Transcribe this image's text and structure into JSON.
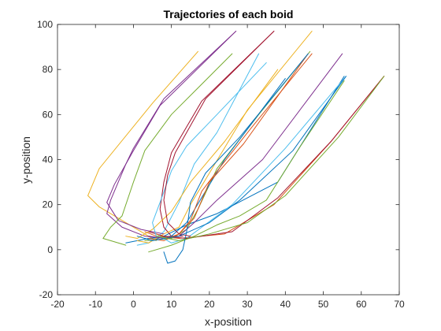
{
  "chart_data": {
    "type": "line",
    "title": "Trajectories of each boid",
    "xlabel": "x-position",
    "ylabel": "y-position",
    "xlim": [
      -20,
      70
    ],
    "ylim": [
      -20,
      100
    ],
    "xticks": [
      -20,
      -10,
      0,
      10,
      20,
      30,
      40,
      50,
      60,
      70
    ],
    "yticks": [
      -20,
      0,
      20,
      40,
      60,
      80,
      100
    ],
    "grid": false,
    "series": [
      {
        "color": "#0072BD",
        "points": [
          [
            55.5,
            77
          ],
          [
            38,
            30
          ],
          [
            22,
            16
          ],
          [
            14,
            11
          ],
          [
            8,
            6
          ],
          [
            5,
            4
          ],
          [
            3,
            5
          ]
        ]
      },
      {
        "color": "#D95319",
        "points": [
          [
            66,
            77
          ],
          [
            52,
            48
          ],
          [
            37,
            20
          ],
          [
            24,
            7
          ],
          [
            12,
            5
          ],
          [
            6,
            6
          ],
          [
            3,
            8
          ]
        ]
      },
      {
        "color": "#EDB120",
        "points": [
          [
            17,
            88
          ],
          [
            5,
            65
          ],
          [
            -9,
            36
          ],
          [
            -12,
            24
          ],
          [
            -9,
            19
          ],
          [
            -4,
            14
          ],
          [
            2,
            8
          ],
          [
            6,
            4
          ]
        ]
      },
      {
        "color": "#7E2F8E",
        "points": [
          [
            27,
            97
          ],
          [
            8,
            67
          ],
          [
            0,
            45
          ],
          [
            -2,
            38
          ],
          [
            -4,
            30
          ],
          [
            -6,
            22
          ],
          [
            -7,
            16
          ],
          [
            -3,
            10
          ],
          [
            3,
            6
          ],
          [
            8,
            5
          ]
        ]
      },
      {
        "color": "#77AC30",
        "points": [
          [
            46.5,
            88
          ],
          [
            33,
            60
          ],
          [
            22,
            36
          ],
          [
            17,
            18
          ],
          [
            14,
            9
          ],
          [
            10,
            5
          ],
          [
            3,
            4
          ]
        ]
      },
      {
        "color": "#4DBEEE",
        "points": [
          [
            33,
            87
          ],
          [
            22,
            52
          ],
          [
            16,
            38
          ],
          [
            12,
            21
          ],
          [
            8,
            8
          ],
          [
            4,
            3
          ],
          [
            1,
            2
          ]
        ]
      },
      {
        "color": "#A2142F",
        "points": [
          [
            37,
            97
          ],
          [
            18,
            66
          ],
          [
            10,
            43
          ],
          [
            8,
            30
          ],
          [
            7,
            18
          ],
          [
            8,
            10
          ],
          [
            10,
            6
          ],
          [
            13,
            6
          ]
        ]
      },
      {
        "color": "#0072BD",
        "points": [
          [
            40,
            76
          ],
          [
            24,
            40
          ],
          [
            14,
            12
          ],
          [
            10,
            6
          ],
          [
            4,
            5
          ],
          [
            -2,
            3
          ]
        ]
      },
      {
        "color": "#D95319",
        "points": [
          [
            46,
            87
          ],
          [
            29,
            47
          ],
          [
            20,
            30
          ],
          [
            16,
            14
          ],
          [
            12,
            7
          ],
          [
            8,
            4
          ],
          [
            4,
            5
          ]
        ]
      },
      {
        "color": "#EDB120",
        "points": [
          [
            47,
            97
          ],
          [
            30,
            62
          ],
          [
            20,
            34
          ],
          [
            15,
            20
          ],
          [
            12,
            10
          ],
          [
            8,
            7
          ],
          [
            4,
            3
          ],
          [
            1,
            4
          ]
        ]
      },
      {
        "color": "#7E2F8E",
        "points": [
          [
            55,
            87
          ],
          [
            34,
            40
          ],
          [
            22,
            22
          ],
          [
            16,
            12
          ],
          [
            12,
            6
          ],
          [
            8,
            5
          ],
          [
            4,
            6
          ]
        ]
      },
      {
        "color": "#77AC30",
        "points": [
          [
            55.5,
            75
          ],
          [
            44,
            46
          ],
          [
            35,
            22
          ],
          [
            28,
            15
          ],
          [
            22,
            11
          ],
          [
            16,
            6
          ],
          [
            10,
            2
          ],
          [
            4,
            -1
          ]
        ]
      },
      {
        "color": "#4DBEEE",
        "points": [
          [
            56,
            77
          ],
          [
            40,
            45
          ],
          [
            26,
            20
          ],
          [
            18,
            10
          ],
          [
            14,
            5
          ],
          [
            10,
            3
          ],
          [
            7,
            6
          ]
        ]
      },
      {
        "color": "#A2142F",
        "points": [
          [
            66,
            77
          ],
          [
            52,
            48
          ],
          [
            38,
            23
          ],
          [
            26,
            8
          ],
          [
            14,
            5
          ],
          [
            8,
            6
          ],
          [
            4,
            8
          ]
        ]
      },
      {
        "color": "#0072BD",
        "points": [
          [
            46,
            87
          ],
          [
            28,
            50
          ],
          [
            19,
            34
          ],
          [
            15,
            21
          ],
          [
            14,
            8
          ],
          [
            13,
            0
          ],
          [
            11,
            -5
          ],
          [
            9,
            -6
          ],
          [
            8,
            -1
          ]
        ]
      },
      {
        "color": "#D95319",
        "points": [
          [
            47,
            87
          ],
          [
            31,
            54
          ],
          [
            23,
            37
          ],
          [
            18,
            26
          ],
          [
            15,
            13
          ],
          [
            12,
            7
          ],
          [
            9,
            5
          ],
          [
            6,
            7
          ]
        ]
      },
      {
        "color": "#EDB120",
        "points": [
          [
            38,
            80
          ],
          [
            24,
            48
          ],
          [
            15,
            30
          ],
          [
            10,
            17
          ],
          [
            5,
            9
          ],
          [
            1,
            5
          ],
          [
            -2,
            6
          ]
        ]
      },
      {
        "color": "#7E2F8E",
        "points": [
          [
            27,
            97
          ],
          [
            7,
            64
          ],
          [
            0,
            44
          ],
          [
            -2,
            38
          ],
          [
            -5,
            29
          ],
          [
            -7,
            21
          ],
          [
            -4,
            13
          ],
          [
            2,
            9
          ],
          [
            8,
            7
          ]
        ]
      },
      {
        "color": "#77AC30",
        "points": [
          [
            26,
            87
          ],
          [
            10,
            60
          ],
          [
            3,
            44
          ],
          [
            0,
            30
          ],
          [
            -3,
            15
          ],
          [
            -6,
            10
          ],
          [
            -8,
            5
          ],
          [
            -2,
            2
          ]
        ]
      },
      {
        "color": "#4DBEEE",
        "points": [
          [
            35,
            83
          ],
          [
            22,
            60
          ],
          [
            14,
            46
          ],
          [
            10,
            35
          ],
          [
            7,
            21
          ],
          [
            5,
            12
          ],
          [
            6,
            6
          ],
          [
            9,
            5
          ]
        ]
      },
      {
        "color": "#A2142F",
        "points": [
          [
            37,
            97
          ],
          [
            19,
            67
          ],
          [
            11,
            43
          ],
          [
            9,
            33
          ],
          [
            8,
            22
          ],
          [
            9,
            12
          ],
          [
            12,
            7
          ],
          [
            15,
            6
          ]
        ]
      },
      {
        "color": "#0072BD",
        "points": [
          [
            56,
            77
          ],
          [
            42,
            44
          ],
          [
            28,
            22
          ],
          [
            20,
            12
          ],
          [
            12,
            6
          ],
          [
            5,
            4
          ],
          [
            1,
            6
          ]
        ]
      },
      {
        "color": "#77AC30",
        "points": [
          [
            66,
            77
          ],
          [
            54,
            50
          ],
          [
            40,
            24
          ],
          [
            30,
            12
          ],
          [
            20,
            7
          ],
          [
            12,
            4
          ],
          [
            6,
            6
          ]
        ]
      }
    ]
  }
}
